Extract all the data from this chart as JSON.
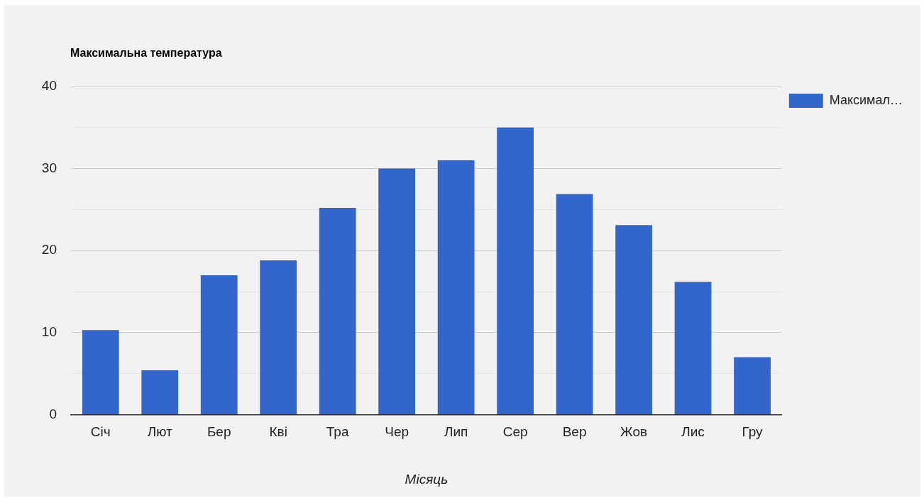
{
  "chart_data": {
    "type": "bar",
    "title": "Максимальна температура",
    "xlabel": "Місяць",
    "categories": [
      "Січ",
      "Лют",
      "Бер",
      "Кві",
      "Тра",
      "Чер",
      "Лип",
      "Сер",
      "Вер",
      "Жов",
      "Лис",
      "Гру"
    ],
    "series": [
      {
        "name": "Максимал…",
        "color": "#3366cc",
        "values": [
          10.3,
          5.4,
          17.0,
          18.8,
          25.2,
          30.0,
          31.0,
          35.0,
          26.9,
          23.1,
          16.2,
          7.0
        ]
      }
    ],
    "ylim": [
      0,
      40
    ],
    "yticks": [
      0,
      {
        "value": 5,
        "label": null
      },
      10,
      {
        "value": 15,
        "label": null
      },
      20,
      {
        "value": 25,
        "label": null
      },
      30,
      {
        "value": 35,
        "label": null
      },
      40
    ],
    "grid": "y",
    "legend": "top right"
  }
}
